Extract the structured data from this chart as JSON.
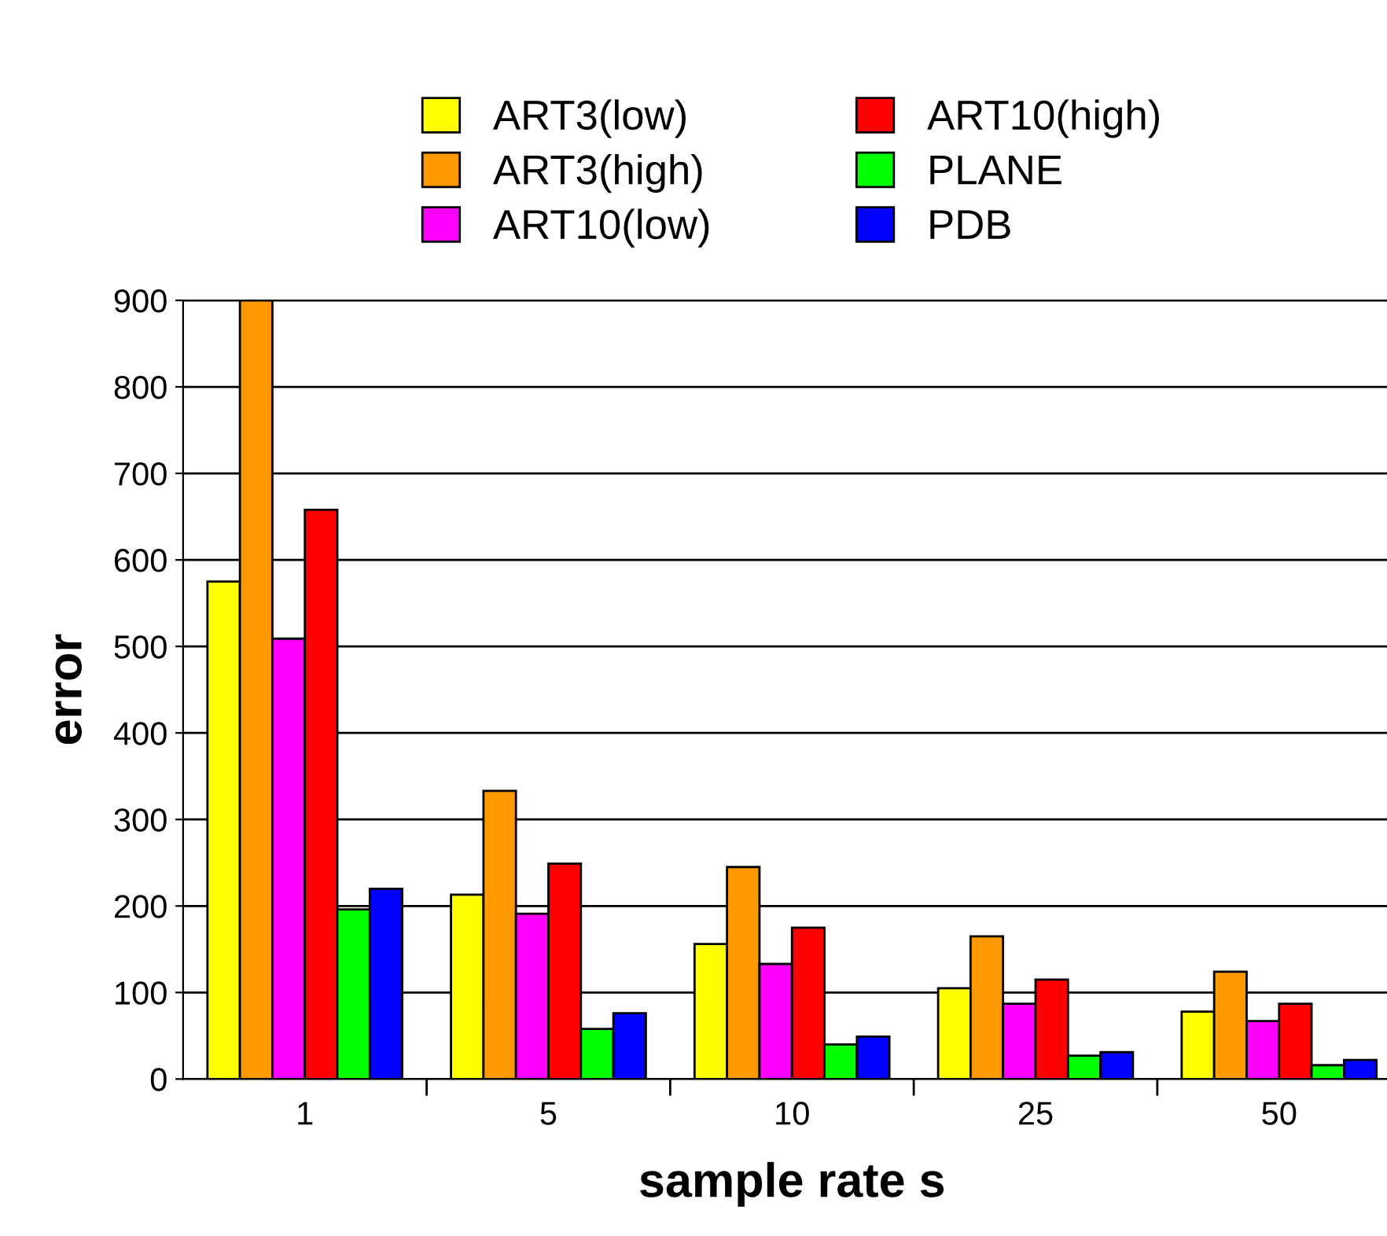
{
  "chart_data": {
    "type": "bar",
    "xlabel": "sample rate s",
    "ylabel": "error",
    "categories": [
      "1",
      "5",
      "10",
      "25",
      "50"
    ],
    "series": [
      {
        "name": "ART3(low)",
        "color": "#ffff00",
        "values": [
          575,
          213,
          156,
          105,
          78
        ]
      },
      {
        "name": "ART3(high)",
        "color": "#ff9900",
        "values": [
          900,
          333,
          245,
          165,
          124
        ]
      },
      {
        "name": "ART10(low)",
        "color": "#ff00ff",
        "values": [
          509,
          191,
          133,
          87,
          67
        ]
      },
      {
        "name": "ART10(high)",
        "color": "#ff0000",
        "values": [
          658,
          249,
          175,
          115,
          87
        ]
      },
      {
        "name": "PLANE",
        "color": "#00ff00",
        "values": [
          196,
          58,
          40,
          27,
          16
        ]
      },
      {
        "name": "PDB",
        "color": "#0000ff",
        "values": [
          220,
          76,
          49,
          31,
          22
        ]
      }
    ],
    "ylim": [
      0,
      900
    ],
    "yticks": [
      0,
      100,
      200,
      300,
      400,
      500,
      600,
      700,
      800,
      900
    ],
    "grid": "y",
    "legend": "top"
  }
}
